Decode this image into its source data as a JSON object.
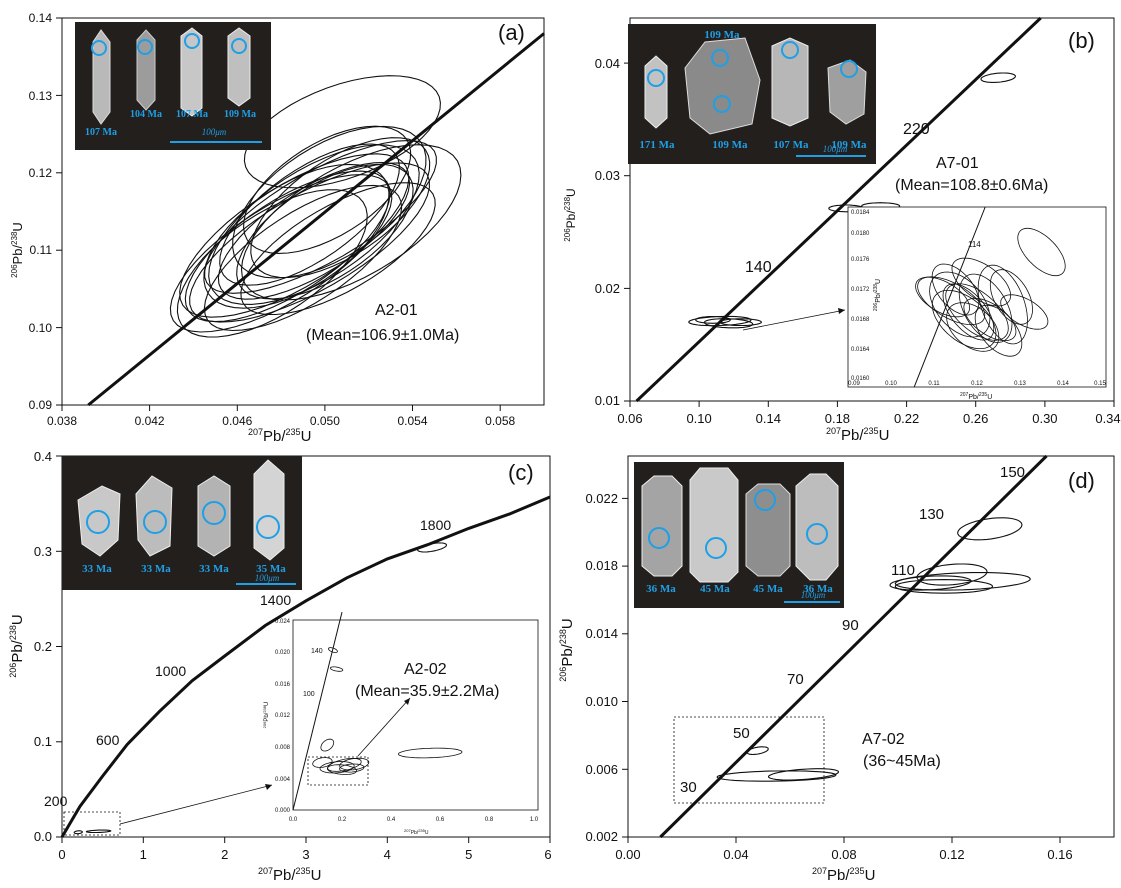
{
  "colors": {
    "ink": "#111111",
    "cl_background": "#231f1d",
    "grain_label": "#1e9fe6",
    "grain_body": "#b9b9b9"
  },
  "chart_data": [
    {
      "id": "a",
      "type": "scatter",
      "panel_label": "(a)",
      "xlabel": "207Pb/235U",
      "ylabel": "206Pb/238U",
      "xlim": [
        0.038,
        0.06
      ],
      "ylim": [
        0.09,
        0.14
      ],
      "xticks": [
        "0.038",
        "0.042",
        "0.046",
        "0.050",
        "0.054",
        "0.058"
      ],
      "yticks": [
        "0.09",
        "0.10",
        "0.11",
        "0.12",
        "0.13",
        "0.14"
      ],
      "annotation": [
        "A2-01",
        "(Mean=106.9±1.0Ma)"
      ],
      "grain_ages": [
        "107 Ma",
        "104 Ma",
        "107 Ma",
        "109 Ma"
      ],
      "scale_bar": "100μm",
      "concordia": [
        [
          0.0392,
          0.09
        ],
        [
          0.06,
          0.138
        ]
      ],
      "ellipses": [
        [
          0.0495,
          0.1133,
          0.0055,
          0.007,
          33
        ],
        [
          0.0502,
          0.1162,
          0.005,
          0.0072,
          33
        ],
        [
          0.0487,
          0.1118,
          0.0048,
          0.0067,
          33
        ],
        [
          0.0493,
          0.111,
          0.0062,
          0.0062,
          30
        ],
        [
          0.048,
          0.1096,
          0.0058,
          0.0062,
          32
        ],
        [
          0.0507,
          0.1155,
          0.0047,
          0.0062,
          34
        ],
        [
          0.0498,
          0.1143,
          0.006,
          0.0058,
          30
        ],
        [
          0.0483,
          0.1105,
          0.0054,
          0.006,
          33
        ],
        [
          0.05,
          0.1124,
          0.0046,
          0.006,
          33
        ],
        [
          0.0486,
          0.1119,
          0.006,
          0.0065,
          32
        ],
        [
          0.0512,
          0.1136,
          0.0056,
          0.0071,
          30
        ],
        [
          0.0476,
          0.1083,
          0.005,
          0.0064,
          34
        ],
        [
          0.0501,
          0.1178,
          0.0043,
          0.006,
          32
        ],
        [
          0.0508,
          0.1253,
          0.0047,
          0.006,
          20
        ],
        [
          0.0493,
          0.1146,
          0.0048,
          0.0058,
          35
        ],
        [
          0.049,
          0.109,
          0.0052,
          0.0058,
          33
        ],
        [
          0.0506,
          0.1102,
          0.005,
          0.0055,
          30
        ],
        [
          0.0495,
          0.1125,
          0.005,
          0.0055,
          32
        ]
      ]
    },
    {
      "id": "b",
      "type": "scatter",
      "panel_label": "(b)",
      "xlabel": "207Pb/235U",
      "ylabel": "206Pb/238U",
      "xlim": [
        0.06,
        0.34
      ],
      "ylim": [
        0.01,
        0.044
      ],
      "xticks": [
        "0.06",
        "0.10",
        "0.14",
        "0.18",
        "0.22",
        "0.26",
        "0.30",
        "0.34"
      ],
      "yticks": [
        "0.01",
        "0.02",
        "0.03",
        "0.04"
      ],
      "annotation": [
        "A7-01",
        "(Mean=108.8±0.6Ma)"
      ],
      "age_labels": [
        "140",
        "220"
      ],
      "grain_ages": [
        "109 Ma",
        "171 Ma",
        "109 Ma",
        "107 Ma",
        "109 Ma"
      ],
      "scale_bar": "100μm",
      "concordia": [
        [
          0.0638,
          0.01
        ],
        [
          0.2976,
          0.044
        ]
      ],
      "ellipses": [
        [
          0.112,
          0.0171,
          0.018,
          0.0004,
          2
        ],
        [
          0.117,
          0.0169,
          0.014,
          0.0004,
          -2
        ],
        [
          0.124,
          0.017,
          0.012,
          0.0003,
          0
        ],
        [
          0.108,
          0.0172,
          0.01,
          0.0003,
          0
        ],
        [
          0.185,
          0.0271,
          0.01,
          0.0003,
          0
        ],
        [
          0.205,
          0.0273,
          0.011,
          0.0003,
          0
        ],
        [
          0.273,
          0.0387,
          0.01,
          0.0004,
          5
        ]
      ],
      "inset": {
        "xlim": [
          0.09,
          0.15
        ],
        "ylim": [
          0.016,
          0.0184
        ],
        "xticks": [
          "0.09",
          "0.10",
          "0.11",
          "0.12",
          "0.13",
          "0.14",
          "0.15"
        ],
        "yticks": [
          "0.0160",
          "0.0164",
          "0.0168",
          "0.0172",
          "0.0176",
          "0.0180",
          "0.0184"
        ],
        "xlabel": "207Pb/235U",
        "ylabel": "206Pb/238U",
        "age_labels": [
          "114"
        ],
        "concordia": [
          [
            0.1054,
            0.016
          ],
          [
            0.1219,
            0.0184
          ]
        ],
        "ellipses": [
          [
            0.114,
            0.01715,
            0.004,
            0.0005,
            60
          ],
          [
            0.12,
            0.017,
            0.0045,
            0.0005,
            50
          ],
          [
            0.118,
            0.017,
            0.004,
            0.00045,
            40
          ],
          [
            0.122,
            0.01705,
            0.005,
            0.0005,
            30
          ],
          [
            0.117,
            0.0169,
            0.005,
            0.0005,
            50
          ],
          [
            0.123,
            0.0169,
            0.0035,
            0.0004,
            55
          ],
          [
            0.126,
            0.0171,
            0.005,
            0.00055,
            20
          ],
          [
            0.128,
            0.0172,
            0.004,
            0.0004,
            30
          ],
          [
            0.131,
            0.017,
            0.003,
            0.00035,
            60
          ],
          [
            0.135,
            0.0178,
            0.0035,
            0.0004,
            45
          ],
          [
            0.115,
            0.0173,
            0.004,
            0.0004,
            40
          ],
          [
            0.112,
            0.0172,
            0.0035,
            0.0004,
            60
          ],
          [
            0.119,
            0.0168,
            0.0045,
            0.0004,
            50
          ],
          [
            0.125,
            0.01675,
            0.004,
            0.0004,
            40
          ],
          [
            0.121,
            0.0174,
            0.004,
            0.00045,
            55
          ],
          [
            0.116,
            0.0171,
            0.0055,
            0.0005,
            40
          ]
        ]
      }
    },
    {
      "id": "c",
      "type": "scatter",
      "panel_label": "(c)",
      "xlabel": "207Pb/235U",
      "ylabel": "206Pb/238U",
      "xlim": [
        0,
        6
      ],
      "ylim": [
        0,
        0.4
      ],
      "xticks": [
        "0",
        "1",
        "2",
        "3",
        "4",
        "5",
        "6"
      ],
      "yticks": [
        "0.0",
        "0.1",
        "0.2",
        "0.3",
        "0.4"
      ],
      "annotation": [
        "A2-02",
        "(Mean=35.9±2.2Ma)"
      ],
      "age_labels": [
        "200",
        "600",
        "1000",
        "1400",
        "1800"
      ],
      "grain_ages": [
        "33 Ma",
        "33 Ma",
        "33 Ma",
        "35 Ma"
      ],
      "scale_bar": "100μm",
      "concordia": [
        [
          0,
          0
        ],
        [
          0.22,
          0.032
        ],
        [
          0.5,
          0.064
        ],
        [
          0.8,
          0.097
        ],
        [
          1.2,
          0.132
        ],
        [
          1.6,
          0.164
        ],
        [
          2.0,
          0.19
        ],
        [
          2.5,
          0.222
        ],
        [
          3.0,
          0.248
        ],
        [
          3.5,
          0.272
        ],
        [
          4.0,
          0.292
        ],
        [
          4.5,
          0.307
        ],
        [
          5.0,
          0.324
        ],
        [
          5.5,
          0.339
        ],
        [
          6.0,
          0.357
        ]
      ],
      "ellipses": [
        [
          4.55,
          0.304,
          0.18,
          0.004,
          10
        ],
        [
          0.45,
          0.006,
          0.15,
          0.0012,
          2
        ],
        [
          0.2,
          0.005,
          0.05,
          0.0015,
          5
        ]
      ],
      "inset": {
        "xlim": [
          0,
          1.0
        ],
        "ylim": [
          0,
          0.024
        ],
        "xticks": [
          "0.0",
          "0.2",
          "0.4",
          "0.6",
          "0.8",
          "1.0"
        ],
        "yticks": [
          "0.000",
          "0.004",
          "0.008",
          "0.012",
          "0.016",
          "0.020",
          "0.024"
        ],
        "xlabel": "207Pb/235U",
        "ylabel": "206Pb/238U",
        "age_labels": [
          "140",
          "100"
        ],
        "concordia": [
          [
            0,
            0
          ],
          [
            0.2,
            0.025
          ]
        ],
        "ellipses": [
          [
            0.56,
            0.0072,
            0.13,
            0.0006,
            2
          ],
          [
            0.14,
            0.0082,
            0.03,
            0.0006,
            40
          ],
          [
            0.18,
            0.0054,
            0.07,
            0.0007,
            5
          ],
          [
            0.21,
            0.0057,
            0.07,
            0.0007,
            12
          ],
          [
            0.2,
            0.0051,
            0.06,
            0.0006,
            -5
          ],
          [
            0.25,
            0.0058,
            0.06,
            0.0007,
            8
          ],
          [
            0.24,
            0.0053,
            0.05,
            0.0005,
            4
          ],
          [
            0.12,
            0.006,
            0.04,
            0.0006,
            10
          ],
          [
            0.178,
            0.0178,
            0.008,
            0.0008,
            80
          ],
          [
            0.163,
            0.0202,
            0.008,
            0.0006,
            70
          ]
        ]
      }
    },
    {
      "id": "d",
      "type": "scatter",
      "panel_label": "(d)",
      "xlabel": "207Pb/235U",
      "ylabel": "206Pb/238U",
      "xlim": [
        0,
        0.18
      ],
      "ylim": [
        0.002,
        0.0245
      ],
      "xticks": [
        "0.00",
        "0.04",
        "0.08",
        "0.12",
        "0.16"
      ],
      "yticks": [
        "0.002",
        "0.006",
        "0.010",
        "0.014",
        "0.018",
        "0.022"
      ],
      "annotation": [
        "A7-02",
        "(36~45Ma)"
      ],
      "age_labels": [
        "30",
        "50",
        "70",
        "90",
        "110",
        "130",
        "150"
      ],
      "grain_ages": [
        "36 Ma",
        "45 Ma",
        "45 Ma",
        "36 Ma"
      ],
      "scale_bar": "100μm",
      "concordia": [
        [
          0.012,
          0.002
        ],
        [
          0.155,
          0.0245
        ]
      ],
      "ellipses": [
        [
          0.134,
          0.0202,
          0.012,
          0.0006,
          8
        ],
        [
          0.12,
          0.0175,
          0.013,
          0.0006,
          5
        ],
        [
          0.124,
          0.0171,
          0.025,
          0.0005,
          2
        ],
        [
          0.112,
          0.017,
          0.015,
          0.0004,
          3
        ],
        [
          0.117,
          0.0168,
          0.018,
          0.0004,
          0
        ],
        [
          0.055,
          0.0056,
          0.022,
          0.0003,
          1
        ],
        [
          0.065,
          0.0057,
          0.013,
          0.0003,
          4
        ],
        [
          0.048,
          0.0071,
          0.004,
          0.0002,
          10
        ]
      ]
    }
  ]
}
